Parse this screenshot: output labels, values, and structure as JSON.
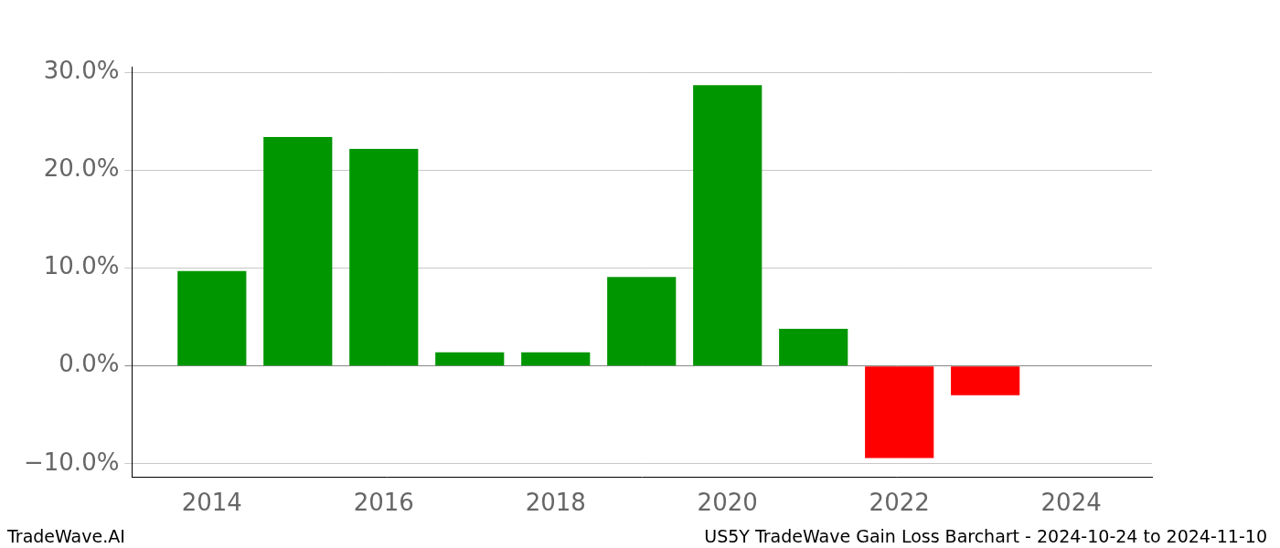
{
  "chart_data": {
    "type": "bar",
    "x": [
      2014,
      2015,
      2016,
      2017,
      2018,
      2019,
      2020,
      2021,
      2022,
      2023
    ],
    "values": [
      9.7,
      23.4,
      22.2,
      1.4,
      1.4,
      9.1,
      28.7,
      3.8,
      -9.4,
      -3.0
    ],
    "colors": [
      "#009600",
      "#009600",
      "#009600",
      "#009600",
      "#009600",
      "#009600",
      "#009600",
      "#009600",
      "#ff0000",
      "#ff0000"
    ],
    "xlim": [
      2013.07,
      2024.94
    ],
    "xticks": [
      2014,
      2016,
      2018,
      2020,
      2022,
      2024
    ],
    "ylim": [
      -11.4,
      30.6
    ],
    "yticks": [
      {
        "value": -10,
        "label": "−10.0%"
      },
      {
        "value": 0,
        "label": "0.0%"
      },
      {
        "value": 10,
        "label": "10.0%"
      },
      {
        "value": 20,
        "label": "20.0%"
      },
      {
        "value": 30,
        "label": "30.0%"
      }
    ],
    "grid": true,
    "annotations": [
      "TradeWave.AI",
      "US5Y TradeWave Gain Loss Barchart - 2024-10-24 to 2024-11-10"
    ]
  }
}
